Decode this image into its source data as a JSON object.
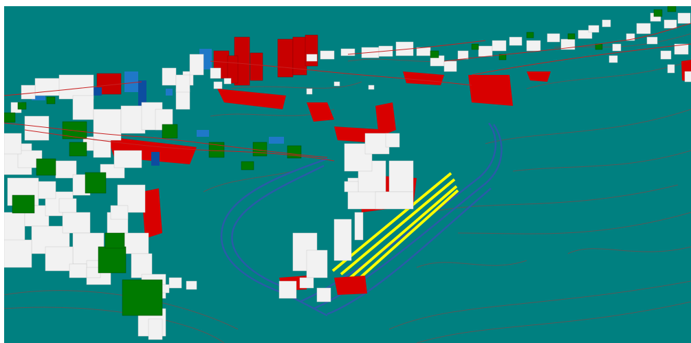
{
  "viewport": {
    "kind": "3d-city-model-view",
    "colors": {
      "terrain": "#008080",
      "building_default": "#f2f2f2",
      "building_highlight_red": "#d80000",
      "building_highlight_green": "#007a00",
      "building_highlight_blue": "#1f78c8",
      "building_dark_blue": "#0d4da0",
      "track_yellow": "#ffff00",
      "tunnel_blue": "#2a5ba8",
      "contour_red": "#b03030"
    },
    "legend_categories": [
      "default",
      "red",
      "green",
      "blue",
      "yellow",
      "tunnel"
    ]
  }
}
